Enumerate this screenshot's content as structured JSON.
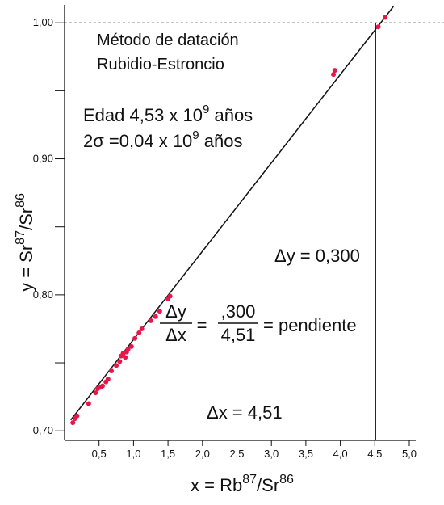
{
  "chart_data": {
    "type": "scatter",
    "x": [
      0.12,
      0.15,
      0.18,
      0.35,
      0.45,
      0.48,
      0.52,
      0.55,
      0.6,
      0.63,
      0.68,
      0.75,
      0.8,
      0.82,
      0.85,
      0.88,
      0.9,
      0.92,
      0.97,
      1.02,
      1.08,
      1.12,
      1.25,
      1.32,
      1.38,
      1.5,
      1.53,
      3.9,
      3.92,
      4.55,
      4.65
    ],
    "y": [
      0.706,
      0.709,
      0.711,
      0.72,
      0.728,
      0.731,
      0.732,
      0.733,
      0.736,
      0.738,
      0.744,
      0.748,
      0.751,
      0.755,
      0.757,
      0.754,
      0.758,
      0.76,
      0.762,
      0.768,
      0.772,
      0.775,
      0.781,
      0.784,
      0.788,
      0.797,
      0.799,
      0.962,
      0.965,
      0.997,
      1.004
    ],
    "color": "#e8174a",
    "fit": {
      "x": [
        0.09,
        4.77
      ],
      "y": [
        0.708,
        1.012
      ]
    },
    "reference_y": 1.0,
    "reference_x": 4.51,
    "xlim": [
      0,
      5.0
    ],
    "ylim": [
      0.693,
      1.012
    ],
    "xticks": [
      {
        "value": 0.5,
        "label": "0,5"
      },
      {
        "value": 1.0,
        "label": "1,0"
      },
      {
        "value": 1.5,
        "label": "1,5"
      },
      {
        "value": 2.0,
        "label": "2,0"
      },
      {
        "value": 2.5,
        "label": "2,5"
      },
      {
        "value": 3.0,
        "label": "3,0"
      },
      {
        "value": 3.5,
        "label": "3,5"
      },
      {
        "value": 4.0,
        "label": "4,0"
      },
      {
        "value": 4.5,
        "label": "4,5"
      },
      {
        "value": 5.0,
        "label": "5,0"
      }
    ],
    "yticks": [
      {
        "value": 0.7,
        "label": "0,70"
      },
      {
        "value": 0.8,
        "label": "0,80"
      },
      {
        "value": 0.9,
        "label": "0,90"
      },
      {
        "value": 1.0,
        "label": "1,00"
      }
    ],
    "yminor": [
      0.75,
      0.85,
      0.95
    ],
    "x_label": {
      "base": "x = Rb",
      "sup1": "87",
      "mid": "/Sr",
      "sup2": "86"
    },
    "y_label": {
      "base": "y = Sr",
      "sup1": "87",
      "mid": "/Sr",
      "sup2": "86"
    },
    "annotations": {
      "method1": "Método de datación",
      "method2": "Rubidio-Estroncio",
      "age": {
        "text": "Edad 4,53 x 10",
        "sup": "9",
        "unit": " años"
      },
      "sigma": {
        "text": "2σ =0,04 x 10",
        "sup": "9",
        "unit": " años"
      },
      "dy": "Δy = 0,300",
      "dx": "Δx = 4,51",
      "slope": {
        "num1": "Δy",
        "den1": "Δx",
        "eq": "=",
        "num2": ",300",
        "den2": "4,51",
        "tail": "= pendiente"
      }
    }
  }
}
